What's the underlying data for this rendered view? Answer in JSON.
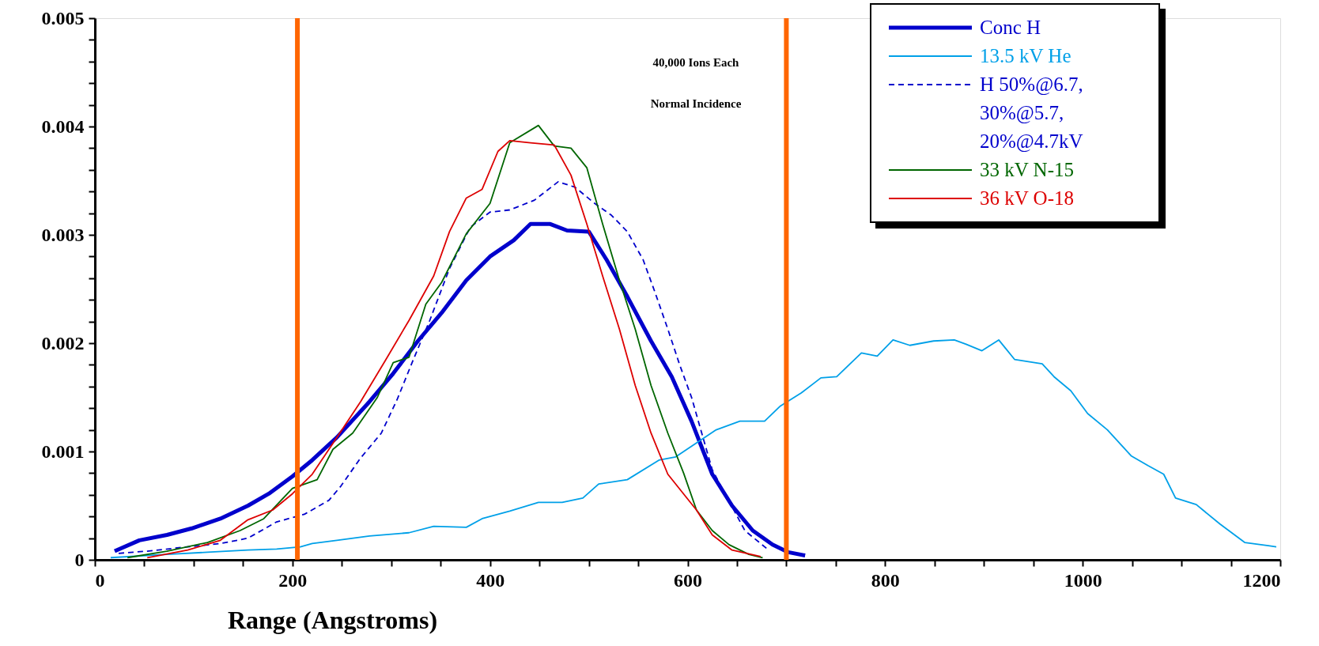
{
  "chart_data": {
    "type": "line",
    "xlabel": "Range (Angstroms)",
    "xlim": [
      0,
      1200
    ],
    "ylim": [
      0,
      0.005
    ],
    "xticks": [
      0,
      {
        "value": 50,
        "label": null
      },
      {
        "value": 100,
        "label": null
      },
      {
        "value": 150,
        "label": null
      },
      200,
      {
        "value": 250,
        "label": null
      },
      {
        "value": 300,
        "label": null
      },
      {
        "value": 350,
        "label": null
      },
      400,
      {
        "value": 450,
        "label": null
      },
      {
        "value": 500,
        "label": null
      },
      {
        "value": 550,
        "label": null
      },
      600,
      {
        "value": 650,
        "label": null
      },
      {
        "value": 700,
        "label": null
      },
      {
        "value": 750,
        "label": null
      },
      800,
      {
        "value": 850,
        "label": null
      },
      {
        "value": 900,
        "label": null
      },
      {
        "value": 950,
        "label": null
      },
      1000,
      {
        "value": 1050,
        "label": null
      },
      {
        "value": 1100,
        "label": null
      },
      {
        "value": 1150,
        "label": null
      },
      1200
    ],
    "yticks": [
      0,
      {
        "value": 0.0002,
        "label": null
      },
      {
        "value": 0.0004,
        "label": null
      },
      {
        "value": 0.0006,
        "label": null
      },
      {
        "value": 0.0008,
        "label": null
      },
      0.001,
      {
        "value": 0.0012,
        "label": null
      },
      {
        "value": 0.0014,
        "label": null
      },
      {
        "value": 0.0016,
        "label": null
      },
      {
        "value": 0.0018,
        "label": null
      },
      0.002,
      {
        "value": 0.0022,
        "label": null
      },
      {
        "value": 0.0024,
        "label": null
      },
      {
        "value": 0.0026,
        "label": null
      },
      {
        "value": 0.0028,
        "label": null
      },
      0.003,
      {
        "value": 0.0032,
        "label": null
      },
      {
        "value": 0.0034,
        "label": null
      },
      {
        "value": 0.0036,
        "label": null
      },
      {
        "value": 0.0038,
        "label": null
      },
      0.004,
      {
        "value": 0.0042,
        "label": null
      },
      {
        "value": 0.0044,
        "label": null
      },
      {
        "value": 0.0046,
        "label": null
      },
      {
        "value": 0.0048,
        "label": null
      },
      0.005
    ],
    "grid": false,
    "legend": "top right",
    "marker": "none",
    "annotations": [
      "40,000 Ions Each",
      "Normal Incidence"
    ],
    "ref_lines": [
      {
        "axis": "x",
        "value": 205,
        "color": "#ff6600"
      },
      {
        "axis": "x",
        "value": 700,
        "color": "#ff6600"
      }
    ],
    "series": [
      {
        "name": "Conc H",
        "color": "#0000cc",
        "line_style": "solid",
        "x": [
          20,
          45,
          73,
          98,
          127,
          155,
          176,
          200,
          220,
          245,
          278,
          302,
          327,
          351,
          376,
          400,
          424,
          441,
          461,
          478,
          500,
          518,
          539,
          563,
          584,
          604,
          625,
          645,
          666,
          686,
          702,
          719
        ],
        "values": [
          8e-05,
          0.00018,
          0.00023,
          0.00029,
          0.00038,
          0.0005,
          0.00061,
          0.00077,
          0.00092,
          0.00113,
          0.00146,
          0.00172,
          0.00202,
          0.00228,
          0.00258,
          0.0028,
          0.00295,
          0.0031,
          0.0031,
          0.00304,
          0.00303,
          0.00277,
          0.00243,
          0.00202,
          0.00169,
          0.00128,
          0.00079,
          0.0005,
          0.00027,
          0.00014,
          7e-05,
          4e-05
        ]
      },
      {
        "name": "13.5 kV He",
        "color": "#00a0e8",
        "line_style": "solid",
        "x": [
          16,
          73,
          114,
          155,
          184,
          208,
          220,
          245,
          278,
          318,
          343,
          376,
          392,
          420,
          449,
          473,
          494,
          510,
          539,
          571,
          588,
          629,
          653,
          678,
          694,
          715,
          735,
          751,
          776,
          792,
          808,
          825,
          849,
          870,
          882,
          898,
          915,
          931,
          959,
          971,
          988,
          1005,
          1025,
          1049,
          1066,
          1082,
          1094,
          1115,
          1139,
          1164,
          1188,
          1196
        ],
        "values": [
          2e-05,
          5e-05,
          7e-05,
          9e-05,
          0.0001,
          0.00012,
          0.00015,
          0.00018,
          0.00022,
          0.00025,
          0.00031,
          0.0003,
          0.00038,
          0.00045,
          0.00053,
          0.00053,
          0.00057,
          0.0007,
          0.00074,
          0.00092,
          0.00095,
          0.0012,
          0.00128,
          0.00128,
          0.00142,
          0.00154,
          0.00168,
          0.00169,
          0.00191,
          0.00188,
          0.00203,
          0.00198,
          0.00202,
          0.00203,
          0.00199,
          0.00193,
          0.00203,
          0.00185,
          0.00181,
          0.00169,
          0.00156,
          0.00135,
          0.0012,
          0.00096,
          0.00087,
          0.00079,
          0.00057,
          0.00051,
          0.00033,
          0.00016,
          0.00013,
          0.00012
        ]
      },
      {
        "name": "H 50%@6.7,\n30%@5.7,\n20%@4.7kV",
        "color": "#0000cc",
        "line_style": "dashed",
        "x": [
          24,
          53,
          94,
          127,
          155,
          184,
          212,
          237,
          249,
          269,
          290,
          306,
          322,
          339,
          359,
          380,
          400,
          420,
          445,
          469,
          486,
          506,
          523,
          539,
          555,
          567,
          580,
          592,
          604,
          625,
          658,
          682
        ],
        "values": [
          6e-05,
          8e-05,
          0.00012,
          0.00015,
          0.0002,
          0.00035,
          0.00042,
          0.00055,
          0.00068,
          0.00094,
          0.00117,
          0.00148,
          0.00184,
          0.00221,
          0.00269,
          0.00307,
          0.00321,
          0.00323,
          0.00332,
          0.00349,
          0.00344,
          0.00329,
          0.00318,
          0.00303,
          0.00277,
          0.00247,
          0.00213,
          0.0018,
          0.0015,
          0.00083,
          0.00027,
          9e-05
        ]
      },
      {
        "name": "33 kV N-15",
        "color": "#006600",
        "line_style": "solid",
        "x": [
          33,
          73,
          114,
          147,
          171,
          200,
          225,
          241,
          261,
          286,
          302,
          318,
          335,
          351,
          376,
          400,
          420,
          449,
          465,
          482,
          498,
          514,
          531,
          547,
          563,
          580,
          596,
          609,
          625,
          642,
          662,
          676
        ],
        "values": [
          2e-05,
          8e-05,
          0.00016,
          0.00027,
          0.00038,
          0.00066,
          0.00074,
          0.00102,
          0.00117,
          0.0015,
          0.00182,
          0.00187,
          0.00236,
          0.00256,
          0.00301,
          0.00329,
          0.00385,
          0.00401,
          0.00382,
          0.0038,
          0.00362,
          0.0031,
          0.00258,
          0.00213,
          0.00161,
          0.00117,
          0.0008,
          0.00046,
          0.00027,
          0.00014,
          5e-05,
          2e-05
        ]
      },
      {
        "name": "36 kV O-18",
        "color": "#dd0000",
        "line_style": "solid",
        "x": [
          53,
          94,
          127,
          155,
          180,
          200,
          220,
          245,
          269,
          294,
          318,
          343,
          359,
          376,
          392,
          408,
          420,
          441,
          465,
          482,
          498,
          514,
          531,
          547,
          563,
          580,
          609,
          625,
          645,
          674
        ],
        "values": [
          2e-05,
          9e-05,
          0.00018,
          0.00037,
          0.00046,
          0.00061,
          0.00079,
          0.00113,
          0.00146,
          0.00184,
          0.00221,
          0.00262,
          0.00303,
          0.00334,
          0.00342,
          0.00377,
          0.00387,
          0.00385,
          0.00383,
          0.00355,
          0.0031,
          0.00262,
          0.00213,
          0.00161,
          0.00117,
          0.00079,
          0.00046,
          0.00023,
          9e-05,
          3e-05
        ]
      }
    ]
  }
}
